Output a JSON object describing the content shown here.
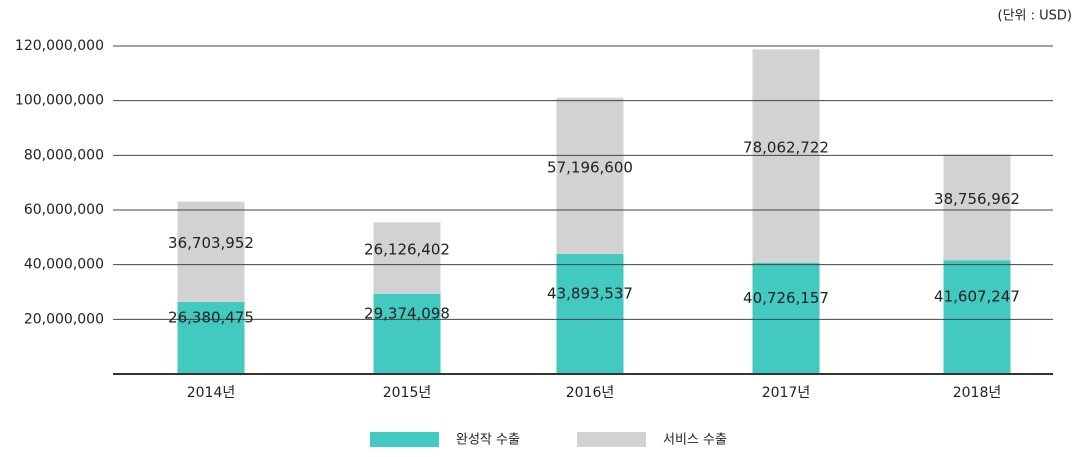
{
  "chart_data": {
    "type": "stacked_bar",
    "unit_note": "(단위 : USD)",
    "categories": [
      "2014년",
      "2015년",
      "2016년",
      "2017년",
      "2018년"
    ],
    "series": [
      {
        "name": "완성작 수출",
        "color": "#42c9c0",
        "values": [
          26380475,
          29374098,
          43893537,
          40726157,
          41607247
        ],
        "value_labels": [
          "26,380,475",
          "29,374,098",
          "43,893,537",
          "40,726,157",
          "41,607,247"
        ]
      },
      {
        "name": "서비스 수출",
        "color": "#d2d2d4",
        "values": [
          36703952,
          26126402,
          57196600,
          78062722,
          38756962
        ],
        "value_labels": [
          "36,703,952",
          "26,126,402",
          "57,196,600",
          "78,062,722",
          "38,756,962"
        ]
      }
    ],
    "ylim": [
      0,
      120000000
    ],
    "yticks": [
      {
        "value": 20000000,
        "label": "20,000,000"
      },
      {
        "value": 40000000,
        "label": "40,000,000"
      },
      {
        "value": 60000000,
        "label": "60,000,000"
      },
      {
        "value": 80000000,
        "label": "80,000,000"
      },
      {
        "value": 100000000,
        "label": "100,000,000"
      },
      {
        "value": 120000000,
        "label": "120,000,000"
      }
    ],
    "grid": true
  }
}
